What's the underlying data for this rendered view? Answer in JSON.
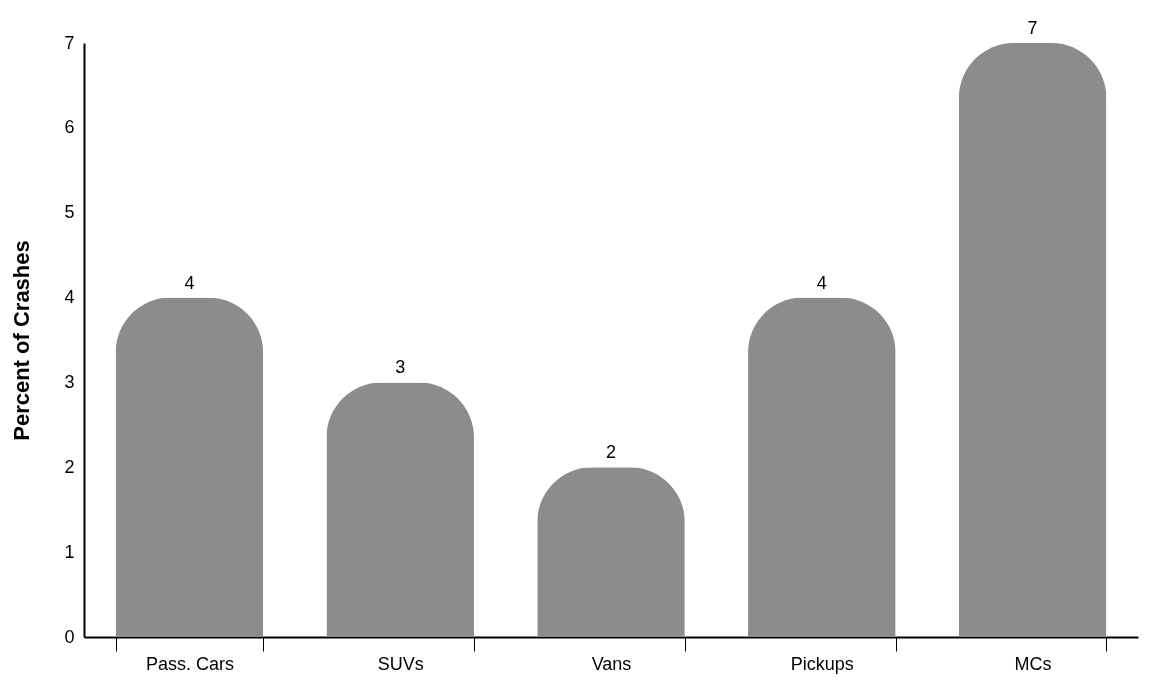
{
  "chart_data": {
    "type": "bar",
    "ylabel": "Percent of Crashes",
    "categories": [
      "Pass. Cars",
      "SUVs",
      "Vans",
      "Pickups",
      "MCs"
    ],
    "values": [
      4,
      3,
      2,
      4,
      7
    ],
    "color": "#8c8c8c",
    "ylim": [
      0,
      7
    ],
    "yticks": [
      0,
      1,
      2,
      3,
      4,
      5,
      6,
      7
    ],
    "grid": false,
    "data_labels": true
  }
}
